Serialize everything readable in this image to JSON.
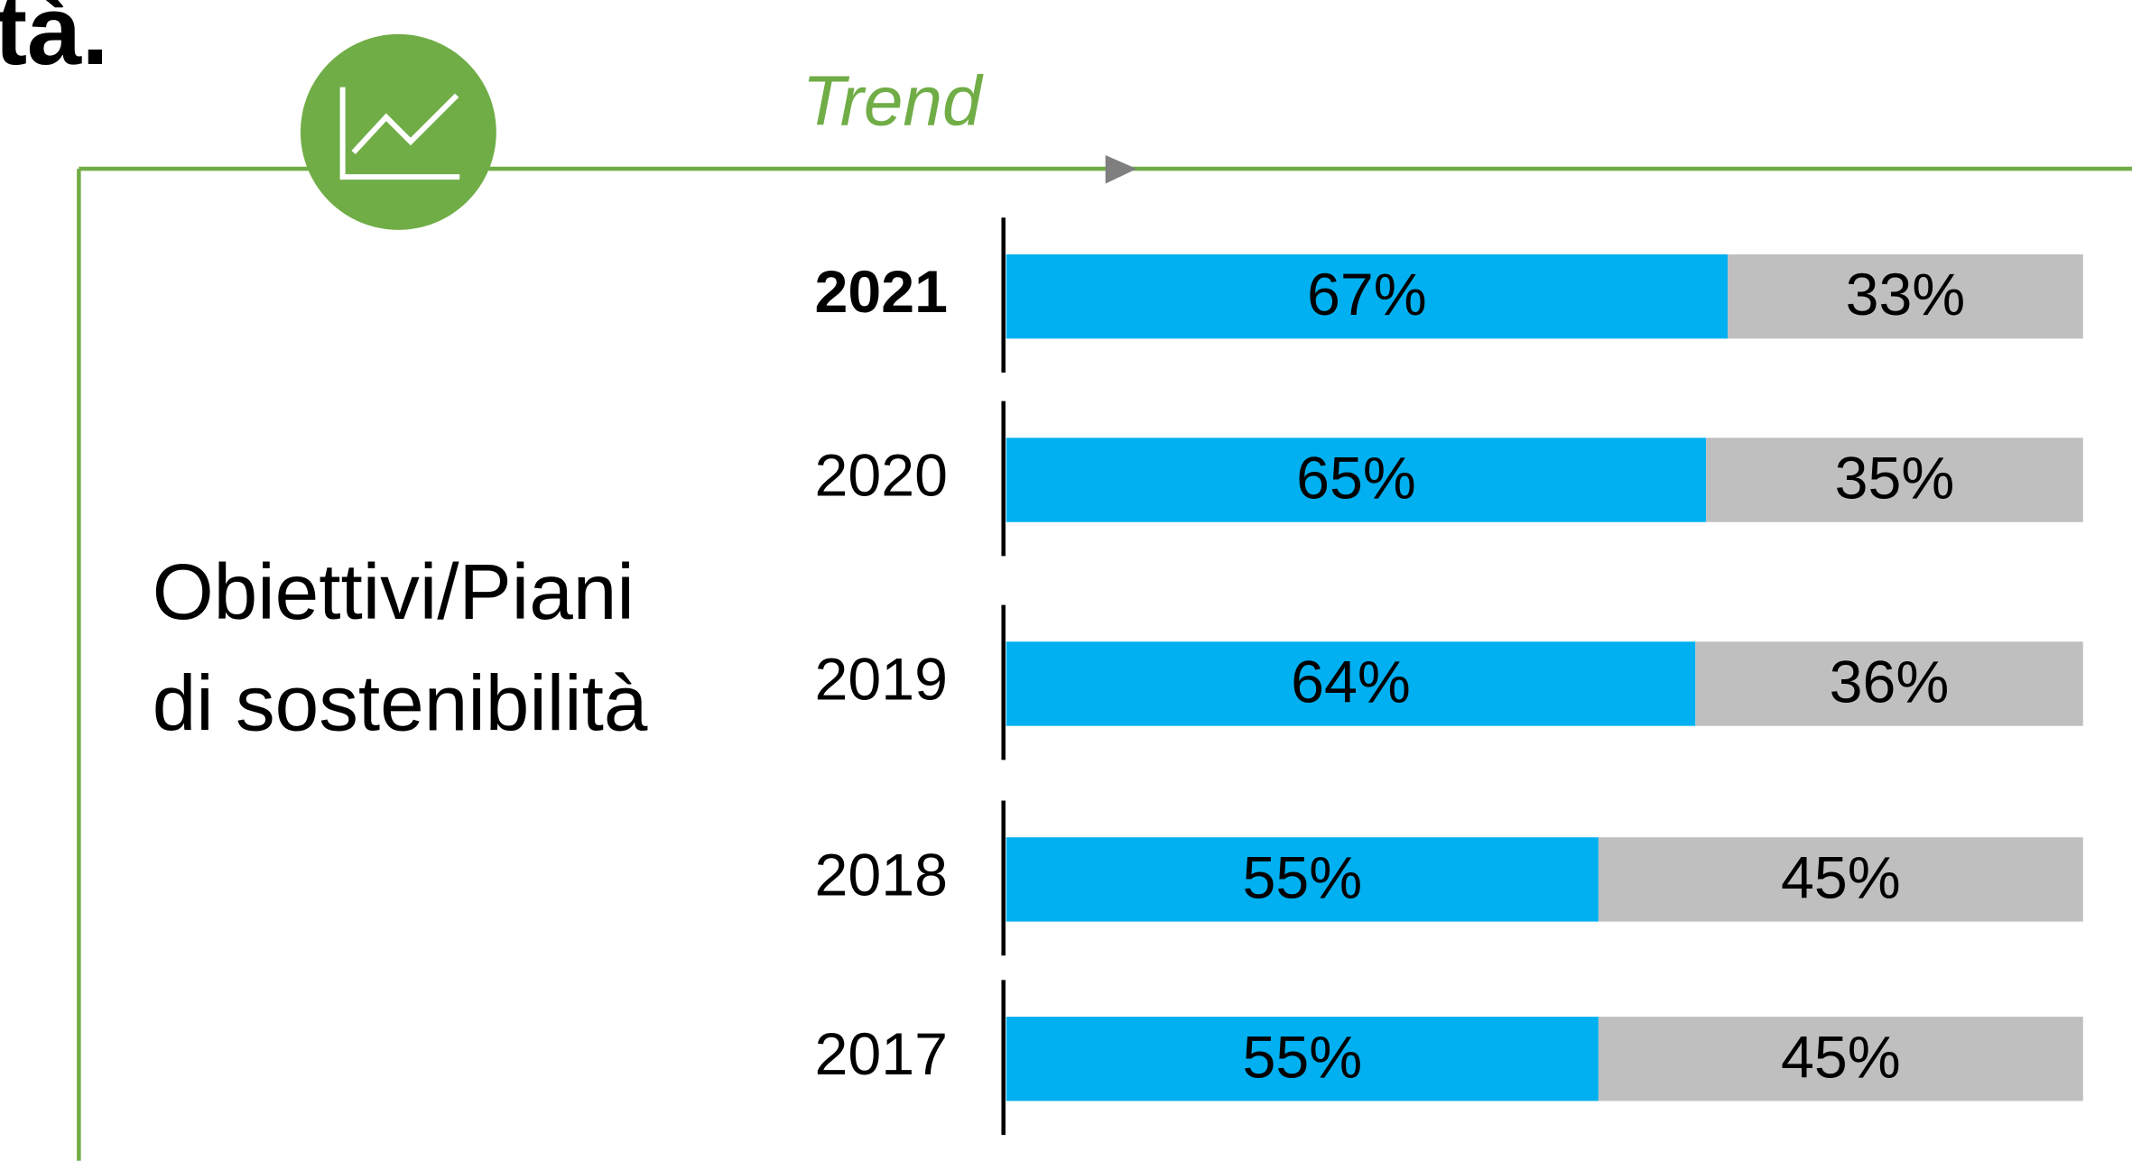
{
  "heading_fragment": "tà.",
  "chart_data": {
    "type": "bar",
    "orientation": "horizontal",
    "stacked": true,
    "trend_label": "Trend",
    "label_lines": [
      "Obiettivi/Piani",
      "di sostenibilità"
    ],
    "categories": [
      "2021",
      "2020",
      "2019",
      "2018",
      "2017"
    ],
    "xlim": [
      0,
      100
    ],
    "series": [
      {
        "color": "#00b0f0",
        "values": [
          67,
          65,
          64,
          55,
          55
        ],
        "value_labels": [
          "67%",
          "65%",
          "64%",
          "55%",
          "55%"
        ]
      },
      {
        "color": "#bfbfbf",
        "values": [
          33,
          35,
          36,
          45,
          45
        ],
        "value_labels": [
          "33%",
          "35%",
          "36%",
          "45%",
          "45%"
        ]
      }
    ]
  }
}
